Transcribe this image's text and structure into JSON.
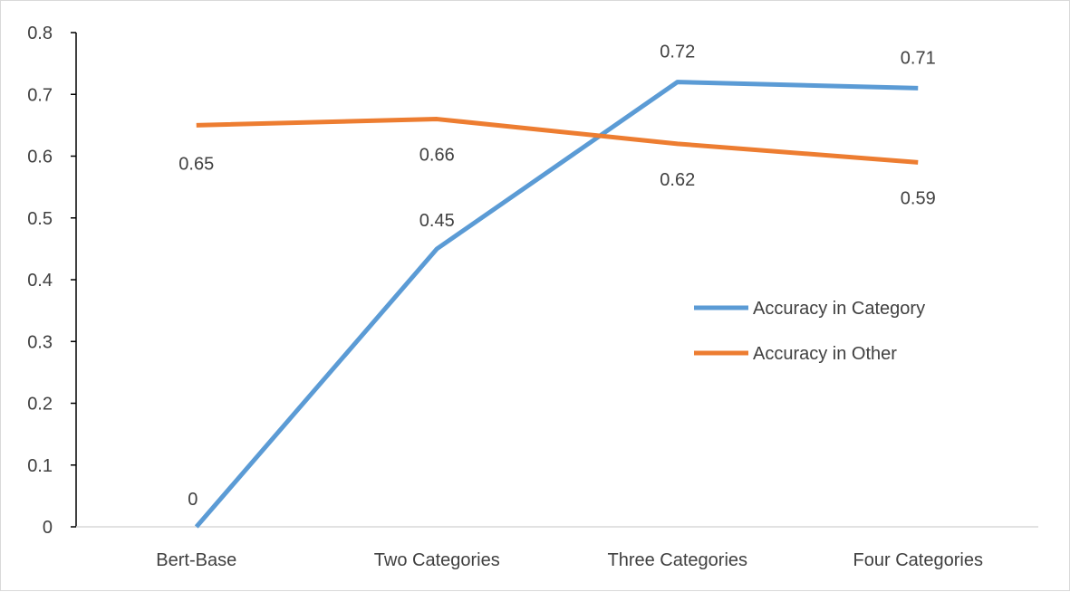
{
  "chart_data": {
    "type": "line",
    "title": "",
    "xlabel": "",
    "ylabel": "",
    "categories": [
      "Bert-Base",
      "Two Categories",
      "Three Categories",
      "Four Categories"
    ],
    "series": [
      {
        "name": "Accuracy in Category",
        "values": [
          0,
          0.45,
          0.72,
          0.71
        ],
        "color": "#5b9bd5",
        "labels": [
          "0",
          "0.45",
          "0.72",
          "0.71"
        ]
      },
      {
        "name": "Accuracy in Other",
        "values": [
          0.65,
          0.66,
          0.62,
          0.59
        ],
        "color": "#ed7d31",
        "labels": [
          "0.65",
          "0.66",
          "0.62",
          "0.59"
        ]
      }
    ],
    "ylim": [
      0,
      0.8
    ],
    "yticks": [
      "0",
      "0.1",
      "0.2",
      "0.3",
      "0.4",
      "0.5",
      "0.6",
      "0.7",
      "0.8"
    ],
    "grid": false,
    "legend_position": "right"
  }
}
